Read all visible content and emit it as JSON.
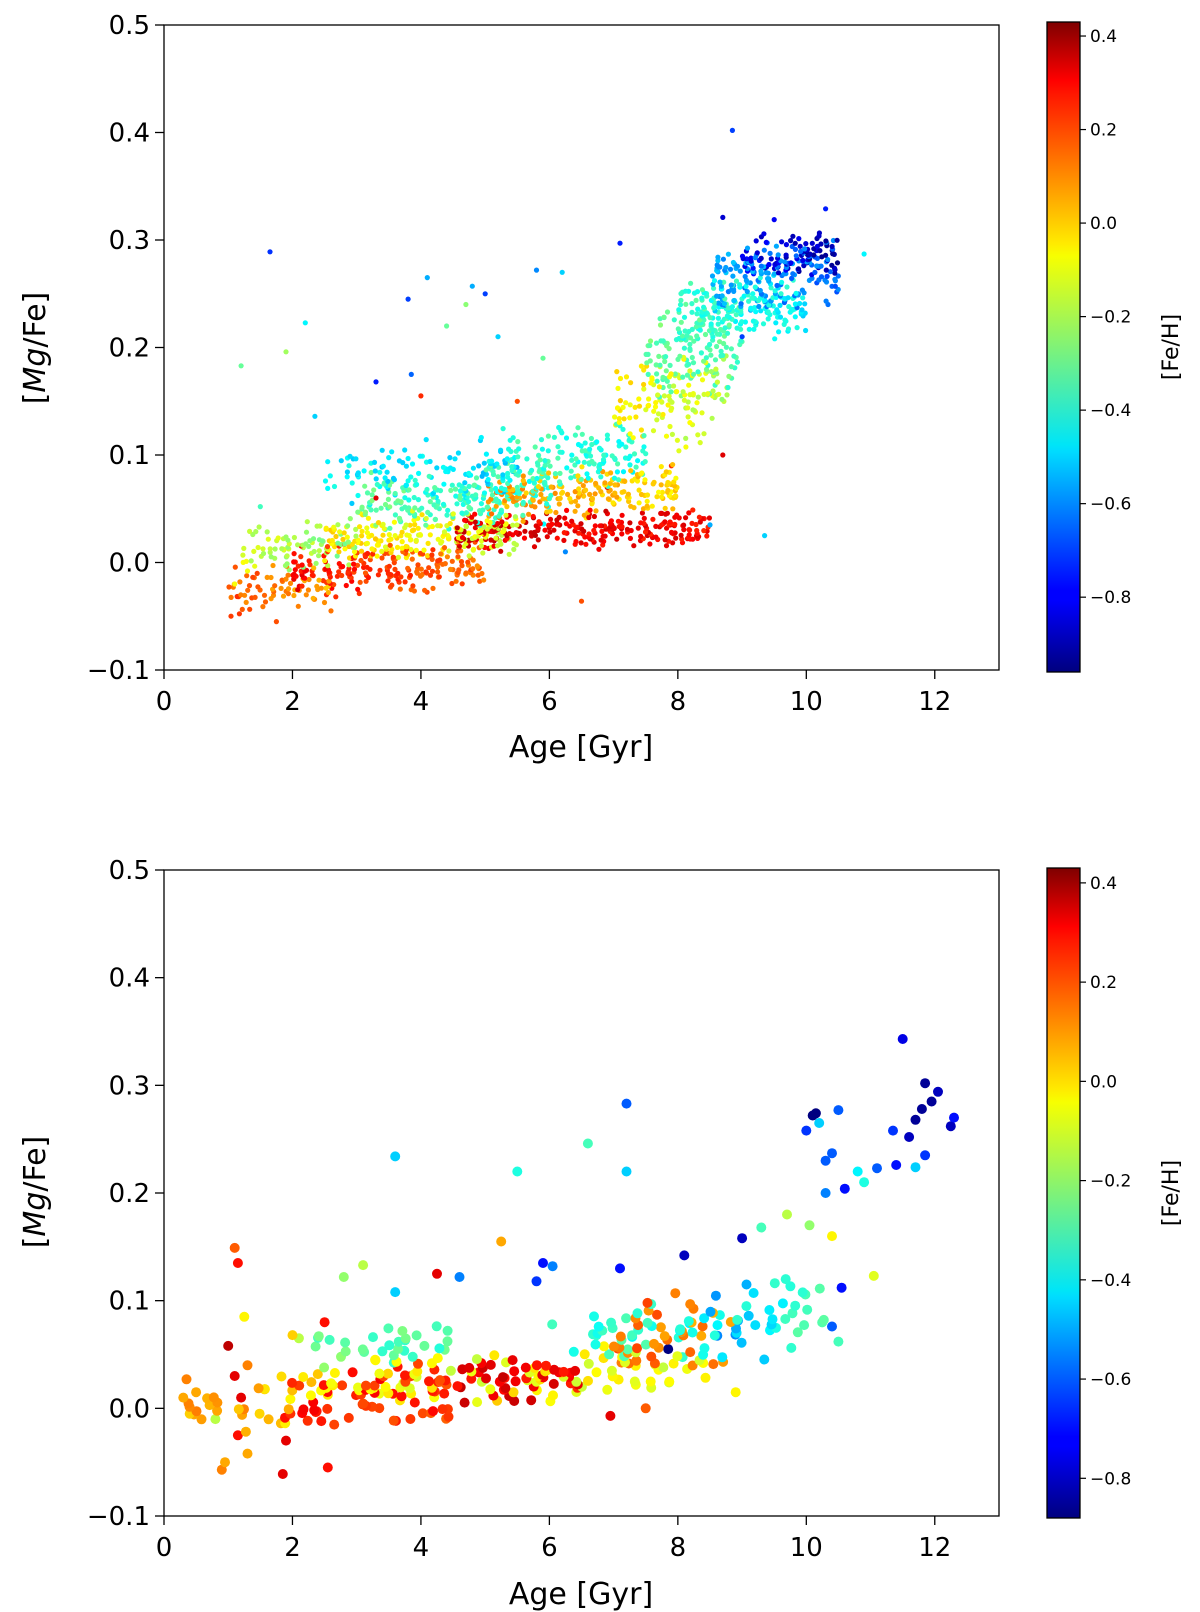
{
  "chart_data": [
    {
      "type": "scatter",
      "title": "",
      "xlabel": "Age [Gyr]",
      "ylabel_parts": [
        "[",
        "Mg",
        "/Fe]"
      ],
      "xlim": [
        0,
        13
      ],
      "ylim": [
        -0.1,
        0.5
      ],
      "xticks": [
        0,
        2,
        4,
        6,
        8,
        10,
        12
      ],
      "xtick_labels": [
        "0",
        "2",
        "4",
        "6",
        "8",
        "10",
        "12"
      ],
      "yticks": [
        -0.1,
        0.0,
        0.1,
        0.2,
        0.3,
        0.4,
        0.5
      ],
      "ytick_labels": [
        "−0.1",
        "0.0",
        "0.1",
        "0.2",
        "0.3",
        "0.4",
        "0.5"
      ],
      "grid": false,
      "color_encoding": "[Fe/H]",
      "colorbar": {
        "label": "[Fe/H]",
        "colormap": "jet",
        "range": [
          -0.96,
          0.43
        ],
        "ticks": [
          0.4,
          0.2,
          0.0,
          -0.2,
          -0.4,
          -0.6,
          -0.8
        ],
        "tick_labels": [
          "0.4",
          "0.2",
          "0.0",
          "−0.2",
          "−0.4",
          "−0.6",
          "−0.8"
        ]
      },
      "points": [
        [
          1.65,
          0.289,
          -0.72
        ],
        [
          1.2,
          0.183,
          -0.3
        ],
        [
          1.9,
          0.196,
          -0.22
        ],
        [
          2.2,
          0.223,
          -0.45
        ],
        [
          2.35,
          0.136,
          -0.5
        ],
        [
          3.3,
          0.168,
          -0.75
        ],
        [
          3.8,
          0.245,
          -0.7
        ],
        [
          3.85,
          0.175,
          -0.65
        ],
        [
          4.1,
          0.265,
          -0.55
        ],
        [
          4.0,
          0.155,
          0.2
        ],
        [
          4.4,
          0.22,
          -0.3
        ],
        [
          4.7,
          0.24,
          -0.25
        ],
        [
          4.8,
          0.257,
          -0.55
        ],
        [
          5.0,
          0.25,
          -0.7
        ],
        [
          5.2,
          0.21,
          -0.5
        ],
        [
          5.8,
          0.272,
          -0.6
        ],
        [
          6.2,
          0.27,
          -0.5
        ],
        [
          5.9,
          0.19,
          -0.3
        ],
        [
          7.1,
          0.297,
          -0.75
        ],
        [
          8.85,
          0.402,
          -0.7
        ],
        [
          8.7,
          0.321,
          -0.85
        ],
        [
          9.5,
          0.319,
          -0.8
        ],
        [
          10.3,
          0.329,
          -0.75
        ],
        [
          10.9,
          0.287,
          -0.45
        ],
        [
          9.0,
          0.21,
          -0.7
        ],
        [
          6.5,
          -0.036,
          0.15
        ],
        [
          9.35,
          0.025,
          -0.5
        ],
        [
          8.5,
          0.035,
          -0.55
        ],
        [
          6.25,
          0.01,
          -0.6
        ],
        [
          3.3,
          0.06,
          0.3
        ],
        [
          5.5,
          0.15,
          0.15
        ],
        [
          6.9,
          0.07,
          0.3
        ],
        [
          7.9,
          0.09,
          0.2
        ],
        [
          8.7,
          0.1,
          0.3
        ],
        [
          1.1,
          -0.02,
          -0.1
        ],
        [
          1.5,
          0.052,
          -0.35
        ],
        [
          1.75,
          -0.055,
          0.15
        ],
        [
          2.6,
          -0.045,
          0.1
        ]
      ],
      "bands": [
        {
          "x0": 1.0,
          "x1": 2.6,
          "y0": -0.05,
          "y1": 0.0,
          "c0": 0.15,
          "c1": 0.0,
          "n": 70
        },
        {
          "x0": 1.2,
          "x1": 3.0,
          "y0": -0.01,
          "y1": 0.04,
          "c0": -0.15,
          "c1": -0.25,
          "n": 80
        },
        {
          "x0": 2.0,
          "x1": 5.0,
          "y0": -0.03,
          "y1": 0.02,
          "c0": 0.25,
          "c1": 0.1,
          "n": 200
        },
        {
          "x0": 2.5,
          "x1": 5.5,
          "y0": 0.0,
          "y1": 0.05,
          "c0": -0.05,
          "c1": -0.15,
          "n": 200
        },
        {
          "x0": 3.0,
          "x1": 6.0,
          "y0": 0.03,
          "y1": 0.09,
          "c0": -0.3,
          "c1": -0.4,
          "n": 200
        },
        {
          "x0": 2.5,
          "x1": 5.5,
          "y0": 0.05,
          "y1": 0.12,
          "c0": -0.45,
          "c1": -0.5,
          "n": 120
        },
        {
          "x0": 4.5,
          "x1": 8.5,
          "y0": 0.01,
          "y1": 0.05,
          "c0": 0.3,
          "c1": 0.25,
          "n": 260
        },
        {
          "x0": 5.0,
          "x1": 8.0,
          "y0": 0.04,
          "y1": 0.09,
          "c0": 0.05,
          "c1": -0.05,
          "n": 200
        },
        {
          "x0": 5.0,
          "x1": 7.5,
          "y0": 0.06,
          "y1": 0.13,
          "c0": -0.35,
          "c1": -0.4,
          "n": 160
        },
        {
          "x0": 7.0,
          "x1": 8.8,
          "y0": 0.1,
          "y1": 0.2,
          "c0": -0.05,
          "c1": -0.2,
          "n": 130
        },
        {
          "x0": 7.5,
          "x1": 9.0,
          "y0": 0.15,
          "y1": 0.25,
          "c0": -0.3,
          "c1": -0.35,
          "n": 130
        },
        {
          "x0": 8.0,
          "x1": 10.0,
          "y0": 0.2,
          "y1": 0.27,
          "c0": -0.35,
          "c1": -0.45,
          "n": 180
        },
        {
          "x0": 8.5,
          "x1": 10.5,
          "y0": 0.23,
          "y1": 0.3,
          "c0": -0.55,
          "c1": -0.65,
          "n": 160
        },
        {
          "x0": 9.0,
          "x1": 10.5,
          "y0": 0.26,
          "y1": 0.31,
          "c0": -0.8,
          "c1": -0.9,
          "n": 90
        }
      ],
      "marker_radius": 2.6
    },
    {
      "type": "scatter",
      "title": "",
      "xlabel": "Age [Gyr]",
      "ylabel_parts": [
        "[",
        "Mg",
        "/Fe]"
      ],
      "xlim": [
        0,
        13
      ],
      "ylim": [
        -0.1,
        0.5
      ],
      "xticks": [
        0,
        2,
        4,
        6,
        8,
        10,
        12
      ],
      "xtick_labels": [
        "0",
        "2",
        "4",
        "6",
        "8",
        "10",
        "12"
      ],
      "yticks": [
        -0.1,
        0.0,
        0.1,
        0.2,
        0.3,
        0.4,
        0.5
      ],
      "ytick_labels": [
        "−0.1",
        "0.0",
        "0.1",
        "0.2",
        "0.3",
        "0.4",
        "0.5"
      ],
      "grid": false,
      "color_encoding": "[Fe/H]",
      "colorbar": {
        "label": "[Fe/H]",
        "colormap": "jet",
        "range": [
          -0.88,
          0.43
        ],
        "ticks": [
          0.4,
          0.2,
          0.0,
          -0.2,
          -0.4,
          -0.6,
          -0.8
        ],
        "tick_labels": [
          "0.4",
          "0.2",
          "0.0",
          "−0.2",
          "−0.4",
          "−0.6",
          "−0.8"
        ]
      },
      "points": [
        [
          0.3,
          0.01,
          0.05
        ],
        [
          0.35,
          0.027,
          0.1
        ],
        [
          0.4,
          -0.005,
          0.0
        ],
        [
          0.5,
          0.015,
          0.05
        ],
        [
          0.8,
          -0.01,
          -0.15
        ],
        [
          0.9,
          -0.057,
          0.1
        ],
        [
          0.95,
          -0.05,
          0.05
        ],
        [
          1.0,
          0.058,
          0.35
        ],
        [
          1.1,
          0.149,
          0.15
        ],
        [
          1.15,
          0.135,
          0.25
        ],
        [
          1.1,
          0.03,
          0.3
        ],
        [
          1.15,
          -0.025,
          0.25
        ],
        [
          1.2,
          0.01,
          0.3
        ],
        [
          1.25,
          0.085,
          -0.05
        ],
        [
          1.3,
          -0.042,
          0.05
        ],
        [
          1.3,
          0.04,
          0.1
        ],
        [
          1.85,
          -0.061,
          0.3
        ],
        [
          1.9,
          -0.03,
          0.3
        ],
        [
          2.0,
          0.068,
          0.0
        ],
        [
          2.1,
          0.065,
          -0.15
        ],
        [
          2.55,
          -0.055,
          0.25
        ],
        [
          2.5,
          0.08,
          0.25
        ],
        [
          2.8,
          0.122,
          -0.2
        ],
        [
          3.1,
          0.133,
          -0.15
        ],
        [
          3.6,
          0.234,
          -0.45
        ],
        [
          3.6,
          0.108,
          -0.45
        ],
        [
          4.25,
          0.125,
          0.3
        ],
        [
          4.6,
          0.122,
          -0.55
        ],
        [
          5.25,
          0.155,
          0.05
        ],
        [
          5.5,
          0.22,
          -0.35
        ],
        [
          5.8,
          0.118,
          -0.65
        ],
        [
          5.9,
          0.135,
          -0.7
        ],
        [
          6.05,
          0.132,
          -0.55
        ],
        [
          6.6,
          0.246,
          -0.3
        ],
        [
          7.1,
          0.13,
          -0.7
        ],
        [
          7.2,
          0.283,
          -0.6
        ],
        [
          7.2,
          0.22,
          -0.45
        ],
        [
          6.95,
          -0.007,
          0.3
        ],
        [
          7.5,
          0.0,
          0.15
        ],
        [
          8.1,
          0.142,
          -0.8
        ],
        [
          8.9,
          0.015,
          -0.05
        ],
        [
          9.0,
          0.158,
          -0.8
        ],
        [
          9.3,
          0.168,
          -0.3
        ],
        [
          9.7,
          0.18,
          -0.15
        ],
        [
          10.05,
          0.17,
          -0.2
        ],
        [
          10.1,
          0.272,
          -0.95
        ],
        [
          10.15,
          0.274,
          -0.9
        ],
        [
          10.2,
          0.265,
          -0.45
        ],
        [
          10.0,
          0.258,
          -0.65
        ],
        [
          10.3,
          0.23,
          -0.6
        ],
        [
          10.4,
          0.237,
          -0.6
        ],
        [
          10.5,
          0.277,
          -0.6
        ],
        [
          10.6,
          0.204,
          -0.7
        ],
        [
          10.3,
          0.2,
          -0.55
        ],
        [
          10.55,
          0.112,
          -0.7
        ],
        [
          10.5,
          0.062,
          -0.3
        ],
        [
          10.4,
          0.076,
          -0.6
        ],
        [
          10.4,
          0.16,
          -0.05
        ],
        [
          10.8,
          0.22,
          -0.4
        ],
        [
          10.9,
          0.21,
          -0.35
        ],
        [
          11.05,
          0.123,
          -0.1
        ],
        [
          11.1,
          0.223,
          -0.6
        ],
        [
          11.35,
          0.258,
          -0.65
        ],
        [
          11.4,
          0.226,
          -0.7
        ],
        [
          11.5,
          0.343,
          -0.75
        ],
        [
          11.6,
          0.252,
          -0.8
        ],
        [
          11.7,
          0.268,
          -0.85
        ],
        [
          11.7,
          0.224,
          -0.45
        ],
        [
          11.8,
          0.278,
          -0.85
        ],
        [
          11.85,
          0.302,
          -0.85
        ],
        [
          11.85,
          0.235,
          -0.65
        ],
        [
          11.95,
          0.285,
          -0.85
        ],
        [
          12.05,
          0.294,
          -0.8
        ],
        [
          12.25,
          0.262,
          -0.8
        ],
        [
          12.3,
          0.27,
          -0.7
        ],
        [
          7.85,
          0.055,
          -0.9
        ]
      ],
      "bands": [
        {
          "x0": 0.3,
          "x1": 2.0,
          "y0": -0.03,
          "y1": 0.03,
          "c0": 0.1,
          "c1": 0.0,
          "n": 25
        },
        {
          "x0": 1.8,
          "x1": 4.5,
          "y0": -0.02,
          "y1": 0.04,
          "c0": 0.25,
          "c1": 0.2,
          "n": 60
        },
        {
          "x0": 2.0,
          "x1": 5.0,
          "y0": 0.0,
          "y1": 0.05,
          "c0": 0.0,
          "c1": -0.1,
          "n": 40
        },
        {
          "x0": 2.3,
          "x1": 4.5,
          "y0": 0.04,
          "y1": 0.08,
          "c0": -0.25,
          "c1": -0.3,
          "n": 30
        },
        {
          "x0": 4.5,
          "x1": 6.5,
          "y0": 0.0,
          "y1": 0.05,
          "c0": 0.3,
          "c1": 0.25,
          "n": 40
        },
        {
          "x0": 5.0,
          "x1": 8.5,
          "y0": 0.0,
          "y1": 0.06,
          "c0": -0.05,
          "c1": -0.1,
          "n": 50
        },
        {
          "x0": 6.0,
          "x1": 9.5,
          "y0": 0.04,
          "y1": 0.1,
          "c0": -0.3,
          "c1": -0.4,
          "n": 45
        },
        {
          "x0": 7.0,
          "x1": 9.0,
          "y0": 0.03,
          "y1": 0.12,
          "c0": 0.15,
          "c1": 0.05,
          "n": 35
        },
        {
          "x0": 8.5,
          "x1": 10.3,
          "y0": 0.05,
          "y1": 0.13,
          "c0": -0.55,
          "c1": -0.25,
          "n": 30
        }
      ],
      "marker_radius": 5
    }
  ]
}
